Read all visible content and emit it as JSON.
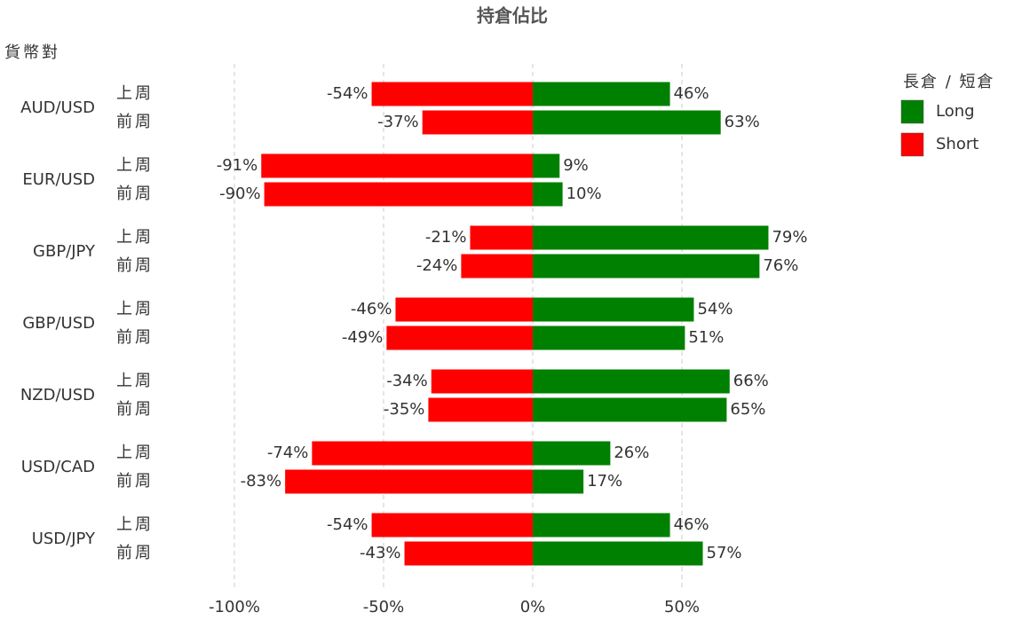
{
  "chart_data": {
    "type": "diverging_bar",
    "title": "持倉佔比",
    "y_axis_label": "貨幣對",
    "groups": [
      "AUD/USD",
      "EUR/USD",
      "GBP/JPY",
      "GBP/USD",
      "NZD/USD",
      "USD/CAD",
      "USD/JPY"
    ],
    "periods": [
      "上周",
      "前周"
    ],
    "legend_title": "長倉 / 短倉",
    "series": [
      {
        "name": "Long",
        "color": "#008000",
        "values": [
          46,
          63,
          9,
          10,
          79,
          76,
          54,
          51,
          66,
          65,
          26,
          17,
          46,
          57
        ],
        "value_labels": [
          "46%",
          "63%",
          "9%",
          "10%",
          "79%",
          "76%",
          "54%",
          "51%",
          "66%",
          "65%",
          "26%",
          "17%",
          "46%",
          "57%"
        ]
      },
      {
        "name": "Short",
        "color": "#ff0000",
        "values": [
          -54,
          -37,
          -91,
          -90,
          -21,
          -24,
          -46,
          -49,
          -34,
          -35,
          -74,
          -83,
          -54,
          -43
        ],
        "value_labels": [
          "-54%",
          "-37%",
          "-91%",
          "-90%",
          "-21%",
          "-24%",
          "-46%",
          "-49%",
          "-34%",
          "-35%",
          "-74%",
          "-83%",
          "-54%",
          "-43%"
        ]
      }
    ],
    "xlim": [
      -100,
      100
    ],
    "xticks": [
      {
        "value": -100,
        "label": "-100%"
      },
      {
        "value": -50,
        "label": "-50%"
      },
      {
        "value": 0,
        "label": "0%"
      },
      {
        "value": 50,
        "label": "50%"
      }
    ],
    "grid": true
  }
}
